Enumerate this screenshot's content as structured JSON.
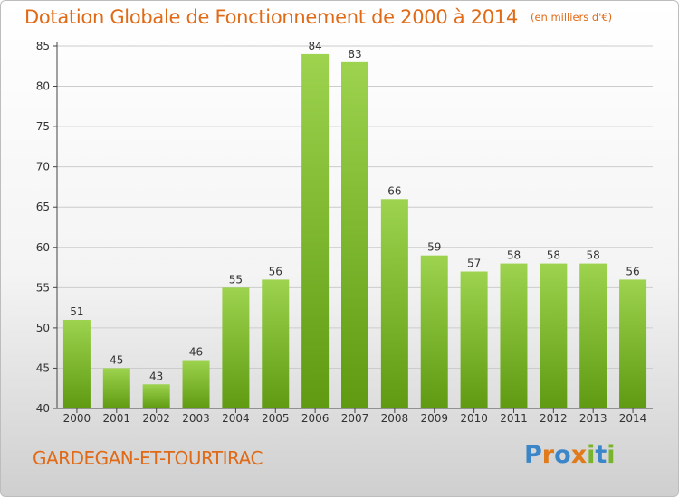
{
  "title": "Dotation Globale de Fonctionnement de 2000 à 2014",
  "subtitle": "(en milliers d'€)",
  "commune": "GARDEGAN-ET-TOURTIRAC",
  "logo": {
    "text": "Proxiti",
    "letters": [
      {
        "char": "P",
        "color": "#3a86c8"
      },
      {
        "char": "r",
        "color": "#e07a1a"
      },
      {
        "char": "o",
        "color": "#3a86c8"
      },
      {
        "char": "x",
        "color": "#e07a1a"
      },
      {
        "char": "i",
        "color": "#7ab32e"
      },
      {
        "char": "t",
        "color": "#3a86c8"
      },
      {
        "char": "i",
        "color": "#7ab32e"
      }
    ]
  },
  "colors": {
    "accent": "#e06a16",
    "bar_top": "#9dd34e",
    "bar_bottom": "#5f9a12",
    "grid": "#cccccc"
  },
  "chart_data": {
    "type": "bar",
    "categories": [
      "2000",
      "2001",
      "2002",
      "2003",
      "2004",
      "2005",
      "2006",
      "2007",
      "2008",
      "2009",
      "2010",
      "2011",
      "2012",
      "2013",
      "2014"
    ],
    "values": [
      51,
      45,
      43,
      46,
      55,
      56,
      84,
      83,
      66,
      59,
      57,
      58,
      58,
      58,
      56
    ],
    "ylim": [
      40,
      85
    ],
    "yticks": [
      40,
      45,
      50,
      55,
      60,
      65,
      70,
      75,
      80,
      85
    ],
    "grid": true,
    "xlabel": "",
    "ylabel": ""
  }
}
